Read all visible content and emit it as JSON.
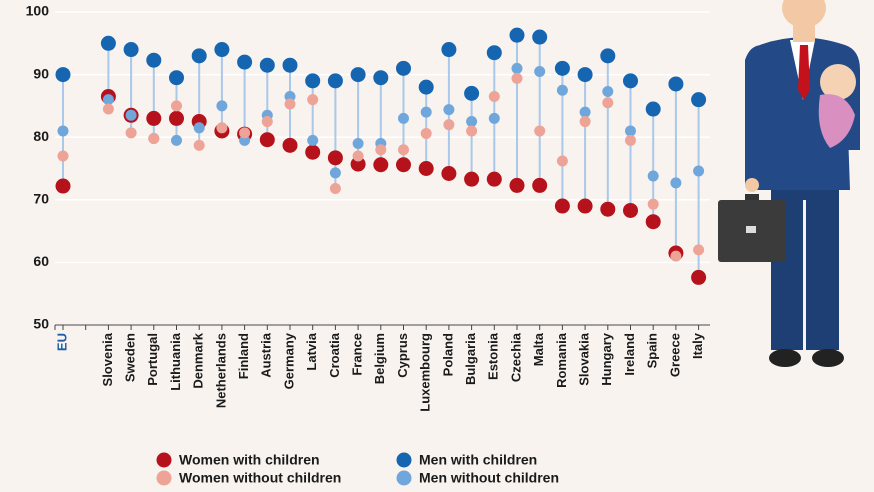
{
  "chart_data": {
    "type": "dot",
    "categories": [
      "EU",
      null,
      "Slovenia",
      "Sweden",
      "Portugal",
      "Lithuania",
      "Denmark",
      "Netherlands",
      "Finland",
      "Austria",
      "Germany",
      "Latvia",
      "Croatia",
      "France",
      "Belgium",
      "Cyprus",
      "Luxembourg",
      "Poland",
      "Bulgaria",
      "Estonia",
      "Czechia",
      "Malta",
      "Romania",
      "Slovakia",
      "Hungary",
      "Ireland",
      "Spain",
      "Greece",
      "Italy"
    ],
    "series": [
      {
        "name": "Women with children",
        "color": "#b5121b",
        "values": [
          72.2,
          null,
          86.5,
          83.5,
          83,
          83,
          82.5,
          81,
          80.5,
          79.6,
          78.7,
          77.6,
          76.7,
          75.7,
          75.6,
          75.6,
          75,
          74.2,
          73.3,
          73.3,
          72.3,
          72.3,
          69,
          69,
          68.5,
          68.3,
          66.5,
          61.5,
          57.6
        ]
      },
      {
        "name": "Women without children",
        "color": "#eea397",
        "values": [
          77,
          null,
          84.5,
          80.7,
          79.8,
          85,
          78.7,
          81.5,
          80.7,
          82.5,
          85.3,
          86,
          71.8,
          77,
          78,
          78,
          80.6,
          82,
          81,
          86.5,
          89.4,
          81,
          76.2,
          82.5,
          85.5,
          79.5,
          69.3,
          61,
          62
        ]
      },
      {
        "name": "Men with children",
        "color": "#1565b0",
        "values": [
          90,
          null,
          95,
          94,
          92.3,
          89.5,
          93,
          94,
          92,
          91.5,
          91.5,
          89,
          89,
          90,
          89.5,
          91,
          88,
          94,
          87,
          93.5,
          96.3,
          96,
          91,
          90,
          93,
          89,
          84.5,
          88.5,
          86
        ]
      },
      {
        "name": "Men without children",
        "color": "#6fa6dc",
        "values": [
          81,
          null,
          86,
          83.5,
          79.8,
          79.5,
          81.5,
          85,
          79.5,
          83.5,
          86.5,
          79.5,
          74.3,
          79,
          79,
          83,
          84,
          84.4,
          82.5,
          83,
          91,
          90.5,
          87.5,
          84,
          87.3,
          81,
          73.8,
          72.7,
          74.6
        ]
      }
    ],
    "ylim": [
      50,
      100
    ],
    "yticks": [
      50,
      60,
      70,
      80,
      90,
      100
    ],
    "grid": true
  }
}
